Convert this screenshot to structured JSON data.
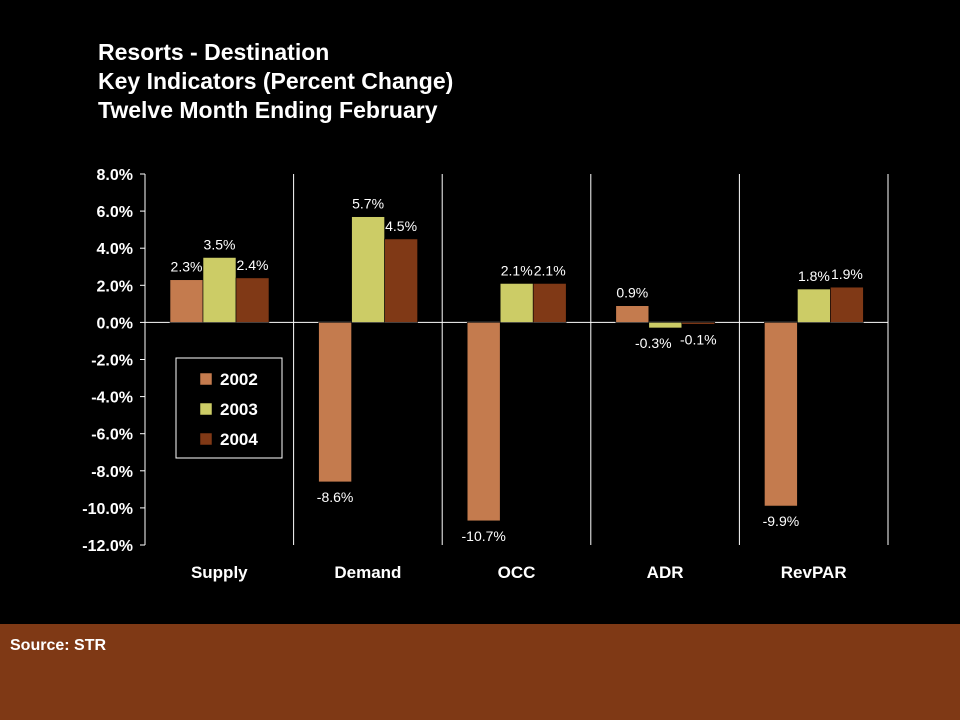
{
  "title_lines": [
    "Resorts - Destination",
    "Key Indicators (Percent Change)",
    "Twelve Month Ending February"
  ],
  "source": "Source: STR",
  "colors": {
    "background": "#000000",
    "text": "#ffffff",
    "footer": "#7f3915",
    "legend_bg": "#000000"
  },
  "chart_data": {
    "type": "bar",
    "categories": [
      "Supply",
      "Demand",
      "OCC",
      "ADR",
      "RevPAR"
    ],
    "series": [
      {
        "name": "2002",
        "color": "#c47b4e",
        "values": [
          2.3,
          -8.6,
          -10.7,
          0.9,
          -9.9
        ]
      },
      {
        "name": "2003",
        "color": "#cccc66",
        "values": [
          3.5,
          5.7,
          2.1,
          -0.3,
          1.8
        ]
      },
      {
        "name": "2004",
        "color": "#803916",
        "values": [
          2.4,
          4.5,
          2.1,
          -0.1,
          1.9
        ]
      }
    ],
    "data_labels": [
      [
        "2.3%",
        "-8.6%",
        "-10.7%",
        "0.9%",
        "-9.9%"
      ],
      [
        "3.5%",
        "5.7%",
        "2.1%",
        "-0.3%",
        "1.8%"
      ],
      [
        "2.4%",
        "4.5%",
        "2.1%",
        "-0.1%",
        "1.9%"
      ]
    ],
    "y_ticks": [
      8,
      6,
      4,
      2,
      0,
      -2,
      -4,
      -6,
      -8,
      -10,
      -12
    ],
    "y_tick_labels": [
      "8.0%",
      "6.0%",
      "4.0%",
      "2.0%",
      "0.0%",
      "-2.0%",
      "-4.0%",
      "-6.0%",
      "-8.0%",
      "-10.0%",
      "-12.0%"
    ],
    "ylim": [
      -12,
      8
    ],
    "unit": "%",
    "legend_position": "left, inside Supply/Demand panel",
    "grid": false,
    "category_separators": true
  }
}
